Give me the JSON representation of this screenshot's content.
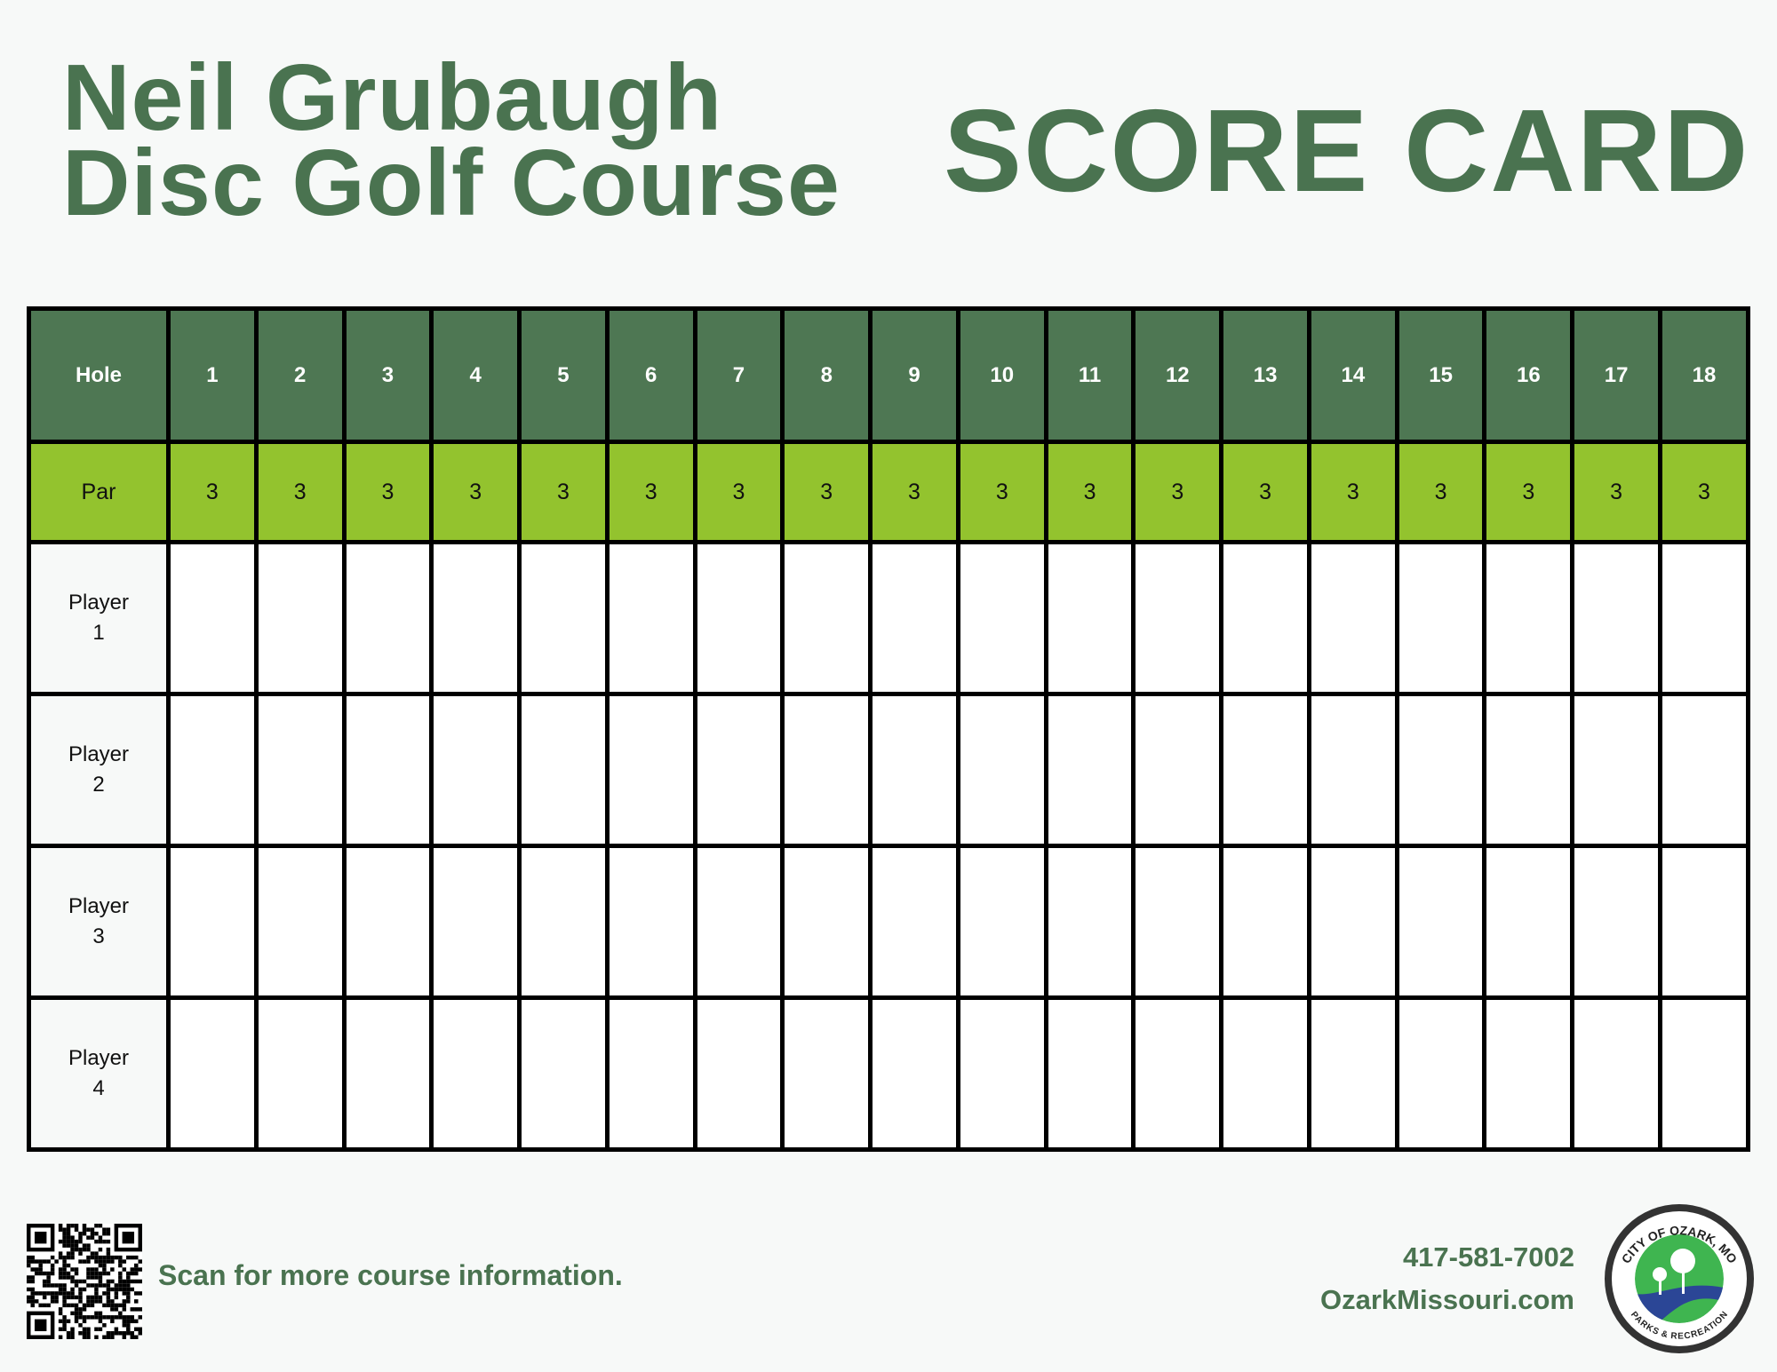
{
  "header": {
    "title_line1": "Neil Grubaugh",
    "title_line2": "Disc Golf Course",
    "card_title": "SCORE CARD"
  },
  "table": {
    "hole_label": "Hole",
    "holes": [
      "1",
      "2",
      "3",
      "4",
      "5",
      "6",
      "7",
      "8",
      "9",
      "10",
      "11",
      "12",
      "13",
      "14",
      "15",
      "16",
      "17",
      "18"
    ],
    "par_label": "Par",
    "pars": [
      "3",
      "3",
      "3",
      "3",
      "3",
      "3",
      "3",
      "3",
      "3",
      "3",
      "3",
      "3",
      "3",
      "3",
      "3",
      "3",
      "3",
      "3"
    ],
    "players": [
      {
        "line1": "Player",
        "line2": "1"
      },
      {
        "line1": "Player",
        "line2": "2"
      },
      {
        "line1": "Player",
        "line2": "3"
      },
      {
        "line1": "Player",
        "line2": "4"
      }
    ]
  },
  "footer": {
    "scan_text": "Scan for more course information.",
    "phone": "417-581-7002",
    "website": "OzarkMissouri.com",
    "logo": {
      "top_text": "CITY OF OZARK, MO",
      "bottom_text": "PARKS & RECREATION"
    }
  },
  "colors": {
    "header_green": "#4e7753",
    "par_green": "#93c32e",
    "text_green": "#4a7350",
    "logo_green": "#3fb550",
    "logo_blue": "#2b4696"
  }
}
